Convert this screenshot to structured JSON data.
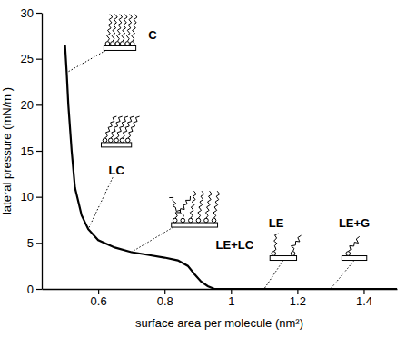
{
  "chart_data": {
    "type": "line",
    "x_label": "surface area per molecule (nm²)",
    "y_label": "lateral pressure (mN/m )",
    "x": [
      0.5,
      0.505,
      0.51,
      0.52,
      0.53,
      0.55,
      0.57,
      0.6,
      0.65,
      0.7,
      0.75,
      0.8,
      0.84,
      0.87,
      0.89,
      0.91,
      0.93,
      0.95,
      1.1,
      1.3,
      1.5
    ],
    "values": [
      26.5,
      23.5,
      20,
      15,
      11,
      8,
      6.5,
      5.3,
      4.5,
      4,
      3.7,
      3.4,
      3.1,
      2.5,
      1.6,
      0.8,
      0.3,
      0,
      0,
      0,
      0
    ],
    "color": "#000000",
    "xlim": [
      0.43,
      1.5
    ],
    "ylim": [
      0,
      30
    ],
    "xticks": [
      0.6,
      0.8,
      1,
      1.2,
      1.4
    ],
    "yticks": [
      0,
      5,
      10,
      15,
      20,
      25,
      30
    ],
    "grid": false,
    "annotations": [
      "C",
      "LC",
      "LE+LC",
      "LE",
      "LE+G"
    ]
  }
}
